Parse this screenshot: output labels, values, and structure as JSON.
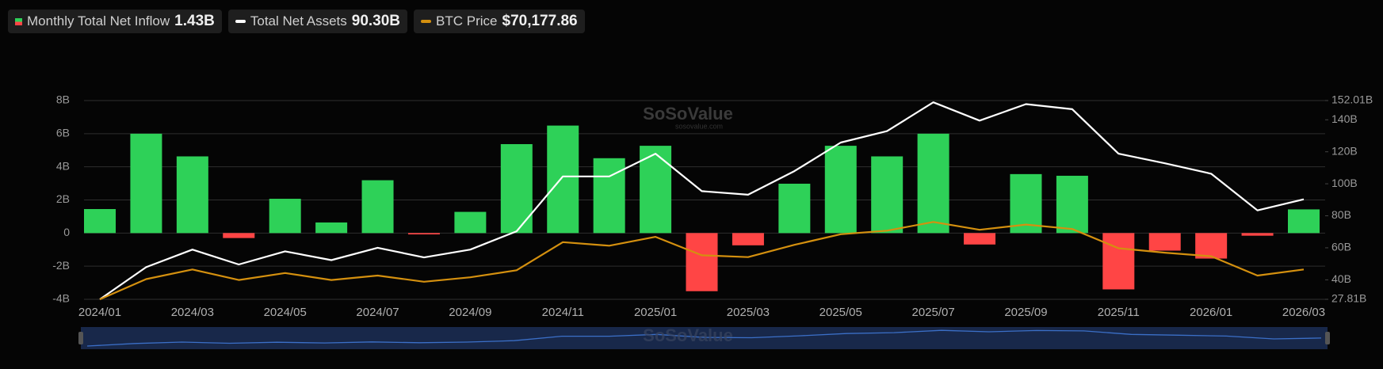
{
  "legend": [
    {
      "label": "Monthly Total Net Inflow",
      "value": "1.43B"
    },
    {
      "label": "Total Net Assets",
      "value": "90.30B"
    },
    {
      "label": "BTC Price",
      "value": "$70,177.86"
    }
  ],
  "watermark": {
    "name": "SoSoValue",
    "url": "sosovalue.com"
  },
  "chart_data": {
    "type": "bar",
    "categories": [
      "2024/01",
      null,
      "2024/03",
      null,
      "2024/05",
      null,
      "2024/07",
      null,
      "2024/09",
      null,
      "2024/11",
      null,
      "2025/01",
      null,
      "2025/03",
      null,
      "2025/05",
      null,
      "2025/07",
      null,
      "2025/09",
      null,
      "2025/11",
      null,
      "2026/01",
      null,
      "2026/03"
    ],
    "series": [
      {
        "name": "Monthly Total Net Inflow",
        "type": "bar",
        "color": "#2ed158",
        "negative_color": "#ff4545",
        "values": [
          1.45,
          6.0,
          4.63,
          -0.3,
          2.07,
          0.64,
          3.19,
          -0.08,
          1.28,
          5.37,
          6.49,
          4.52,
          5.27,
          -3.51,
          -0.74,
          2.98,
          5.27,
          4.63,
          6.0,
          -0.69,
          3.56,
          3.46,
          -3.4,
          -1.06,
          -1.54,
          -0.16,
          1.43
        ]
      },
      {
        "name": "Total Net Assets",
        "type": "line",
        "axis": "y2",
        "color": "#ffffff",
        "values": [
          27.81,
          47.9,
          58.9,
          49.6,
          57.8,
          52.3,
          60.0,
          54.0,
          58.9,
          70.3,
          104.6,
          104.6,
          118.8,
          95.4,
          93.2,
          107.9,
          125.8,
          132.9,
          150.9,
          139.5,
          149.8,
          146.6,
          118.8,
          112.8,
          106.3,
          83.4,
          90.3
        ]
      },
      {
        "name": "BTC Price",
        "type": "line",
        "axis": "y3",
        "color": "#d4900f",
        "values": [
          42500,
          61200,
          70200,
          60400,
          66900,
          60400,
          64500,
          58800,
          62900,
          69400,
          95500,
          92200,
          100400,
          83300,
          81600,
          93000,
          102800,
          106100,
          114200,
          106900,
          111800,
          107700,
          89800,
          85700,
          82400,
          64500,
          70177.86
        ]
      }
    ],
    "ylim": [
      -4,
      8
    ],
    "yticks": [
      {
        "value": -4,
        "label": "-4B"
      },
      {
        "value": -2,
        "label": "-2B"
      },
      0,
      {
        "value": 2,
        "label": "2B"
      },
      {
        "value": 4,
        "label": "4B"
      },
      {
        "value": 6,
        "label": "6B"
      },
      {
        "value": 8,
        "label": "8B"
      }
    ],
    "y2lim": [
      27.81,
      152.01
    ],
    "y2ticks": [
      {
        "value": 27.81,
        "label": "27.81B"
      },
      {
        "value": 40,
        "label": "40B"
      },
      {
        "value": 60,
        "label": "60B"
      },
      {
        "value": 80,
        "label": "80B"
      },
      {
        "value": 100,
        "label": "100B"
      },
      {
        "value": 120,
        "label": "120B"
      },
      {
        "value": 140,
        "label": "140B"
      },
      {
        "value": 152.01,
        "label": "152.01B"
      }
    ],
    "y3lim": [
      42500,
      226700
    ],
    "grid": true
  }
}
